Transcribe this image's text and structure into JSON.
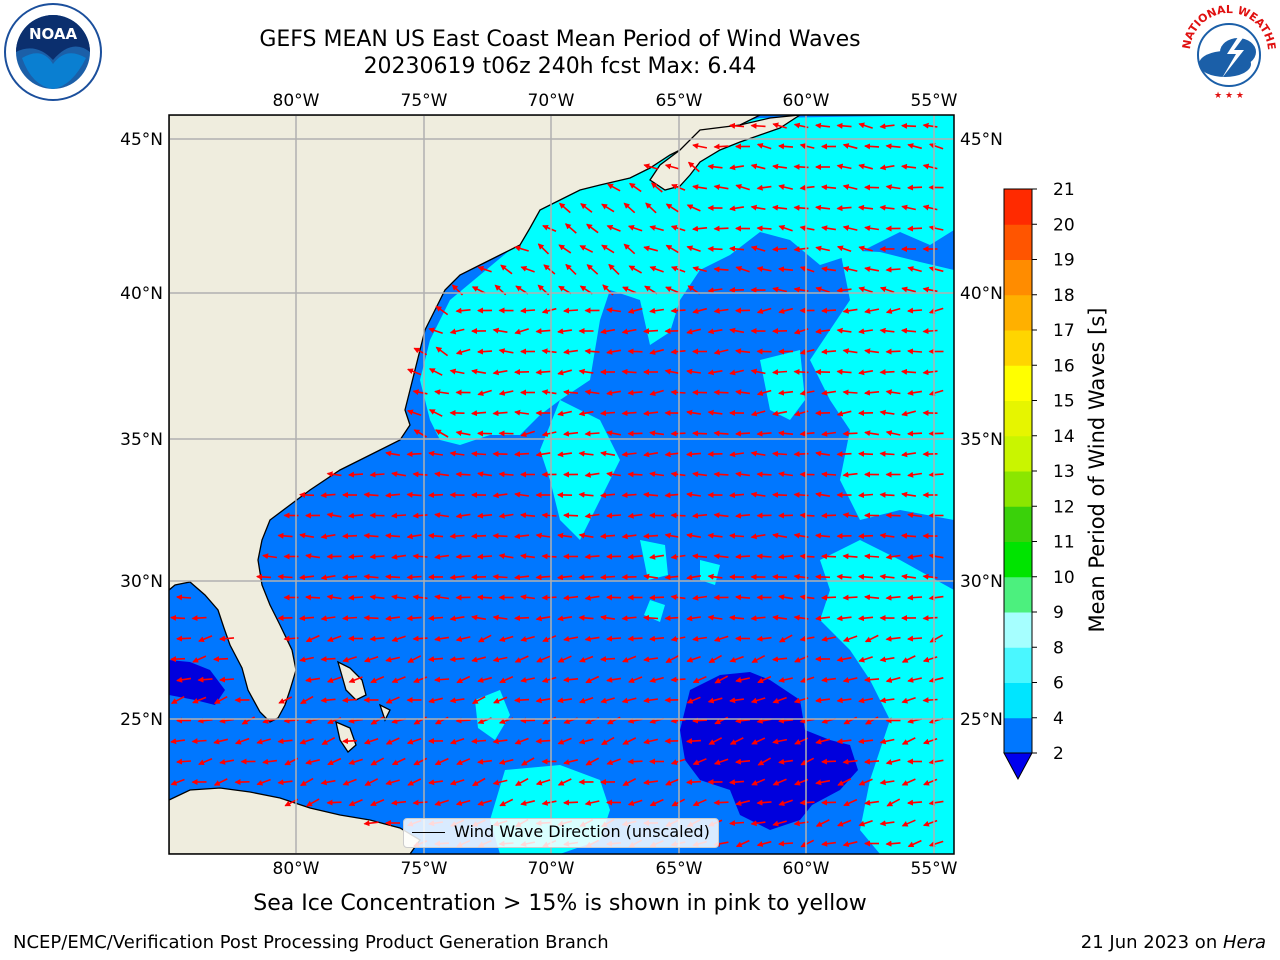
{
  "header": {
    "title_line1": "GEFS MEAN US East Coast Mean Period of Wind Waves",
    "title_line2": "20230619 t06z 240h fcst   Max: 6.44"
  },
  "logos": {
    "left": {
      "name": "NOAA",
      "icon": "noaa-logo-icon",
      "color": "#1b5fa8"
    },
    "right": {
      "name": "National Weather Service",
      "icon": "nws-logo-icon",
      "color": "#1b5fa8",
      "ring_text": "NATIONAL WEATHER SERVICE"
    }
  },
  "map": {
    "region": "US East Coast",
    "lon_ticks": [
      "80°W",
      "75°W",
      "70°W",
      "65°W",
      "60°W",
      "55°W"
    ],
    "lat_ticks": [
      "45°N",
      "40°N",
      "35°N",
      "30°N",
      "25°N"
    ],
    "lon_range": [
      -85,
      -54.3
    ],
    "lat_range": [
      20.5,
      45.9
    ],
    "gridlines": true,
    "land_color": "#efedde",
    "arrow_color": "#ff0000",
    "legend": {
      "label": "Wind Wave Direction (unscaled)",
      "placement": "bottom-center"
    }
  },
  "colorbar": {
    "label": "Mean Period of Wind Waves [s]",
    "tick_labels": [
      "2",
      "4",
      "6",
      "8",
      "9",
      "10",
      "11",
      "12",
      "13",
      "14",
      "15",
      "16",
      "17",
      "18",
      "19",
      "20",
      "21"
    ],
    "levels": [
      2,
      4,
      6,
      8,
      9,
      10,
      11,
      12,
      13,
      14,
      15,
      16,
      17,
      18,
      19,
      20,
      21
    ],
    "colors": [
      "#0077ff",
      "#00e5ff",
      "#4af7ff",
      "#a6ffff",
      "#4cf07e",
      "#00e400",
      "#3ad10a",
      "#8be600",
      "#c9f500",
      "#e6f500",
      "#ffff00",
      "#ffd500",
      "#ffb000",
      "#ff8c00",
      "#ff5500",
      "#ff2a00",
      "#ff0000"
    ],
    "extend_min_color": "#0000ee"
  },
  "chart_data": {
    "type": "heatmap",
    "variable": "Mean Period of Wind Waves",
    "units": "s",
    "max_value": 6.44,
    "category_colors": {
      "2-4": "#0077ff",
      "4-6": "#00ffff",
      "<2": "#0000dd"
    }
  },
  "caption": "Sea Ice Concentration > 15% is shown in pink to yellow",
  "footer": {
    "left": "NCEP/EMC/Verification Post Processing Product Generation Branch",
    "date": "21 Jun 2023 on ",
    "machine": "Hera"
  }
}
